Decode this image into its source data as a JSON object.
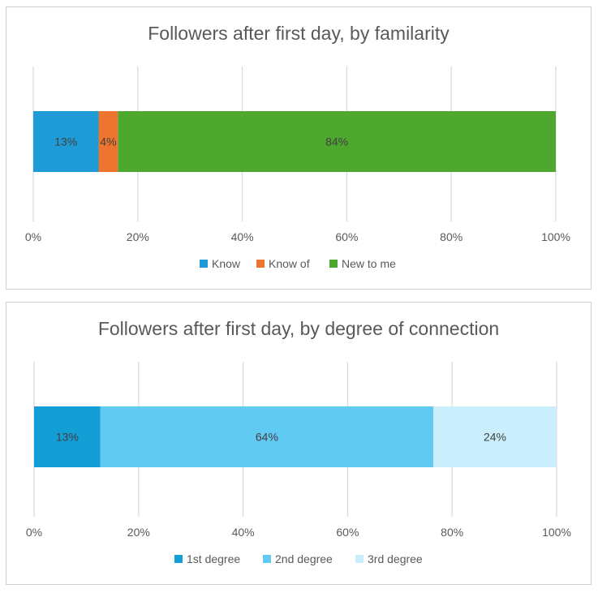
{
  "chart_data": [
    {
      "type": "bar",
      "orientation": "horizontal",
      "stacked": true,
      "title": "Followers after first day, by familarity",
      "xlim": [
        0,
        100
      ],
      "ticks": [
        "0%",
        "20%",
        "40%",
        "60%",
        "80%",
        "100%"
      ],
      "grid": true,
      "legend_position": "bottom",
      "series": [
        {
          "name": "Know",
          "value": 12.5,
          "label": "13%",
          "color": "#1f9bd7"
        },
        {
          "name": "Know of",
          "value": 3.7,
          "label": "4%",
          "color": "#ed7530"
        },
        {
          "name": "New to me",
          "value": 83.8,
          "label": "84%",
          "color": "#4ea72e"
        }
      ]
    },
    {
      "type": "bar",
      "orientation": "horizontal",
      "stacked": true,
      "title": "Followers after first day, by degree of connection",
      "xlim": [
        0,
        100
      ],
      "ticks": [
        "0%",
        "20%",
        "40%",
        "60%",
        "80%",
        "100%"
      ],
      "grid": true,
      "legend_position": "bottom",
      "series": [
        {
          "name": "1st degree",
          "value": 12.7,
          "label": "13%",
          "color": "#139ed6"
        },
        {
          "name": "2nd degree",
          "value": 63.7,
          "label": "64%",
          "color": "#60caf3"
        },
        {
          "name": "3rd degree",
          "value": 23.6,
          "label": "24%",
          "color": "#caeefb"
        }
      ]
    }
  ]
}
